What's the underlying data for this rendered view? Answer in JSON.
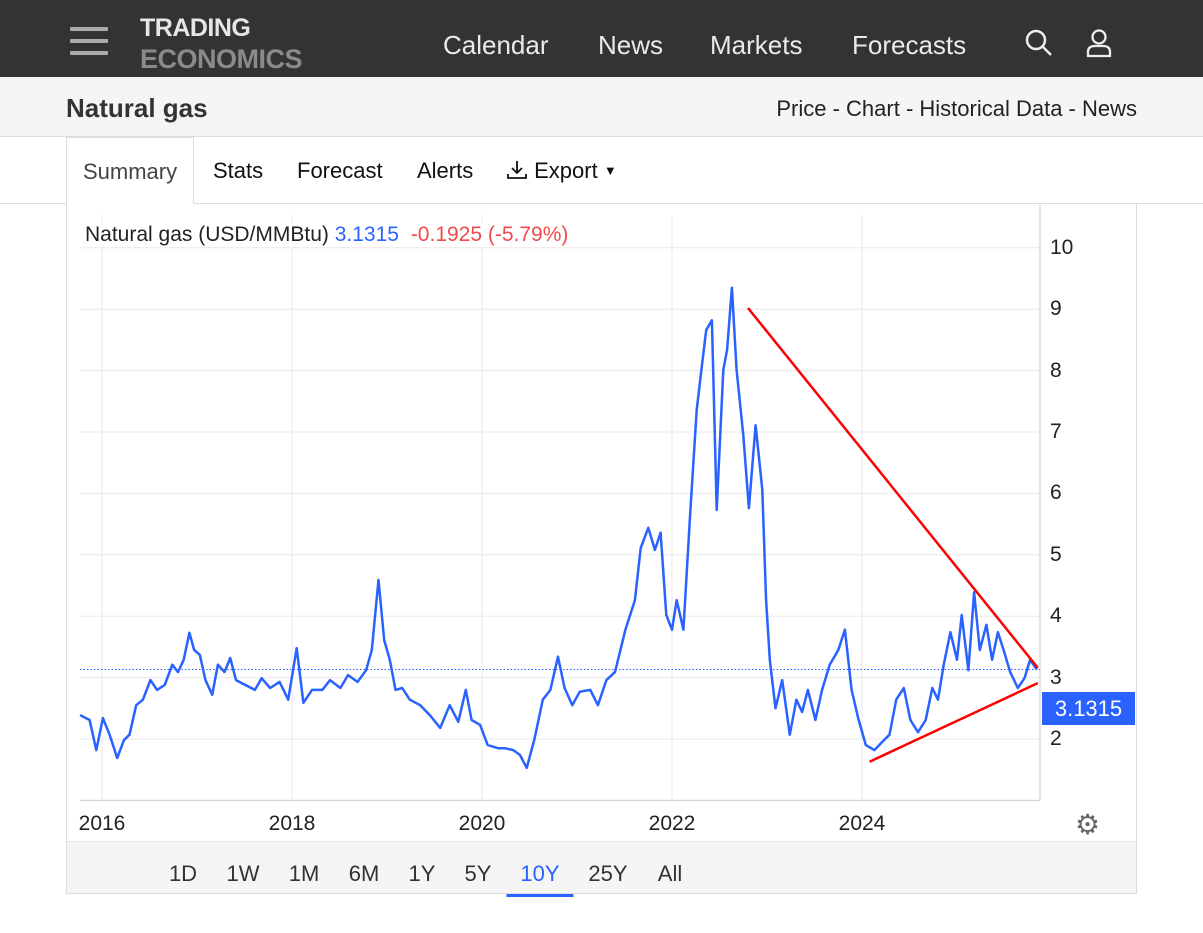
{
  "header": {
    "logo_line1": "TRADING",
    "logo_line2": "ECONOMICS",
    "nav": [
      "Calendar",
      "News",
      "Markets",
      "Forecasts"
    ]
  },
  "subheader": {
    "title": "Natural gas",
    "links": "Price - Chart - Historical Data - News"
  },
  "tabs": [
    "Summary",
    "Stats",
    "Forecast",
    "Alerts",
    "Export"
  ],
  "legend": {
    "name": "Natural gas (USD/MMBtu)",
    "price": "3.1315",
    "change": "-0.1925 (-5.79%)"
  },
  "price_label": "3.1315",
  "ranges": [
    "1D",
    "1W",
    "1M",
    "6M",
    "1Y",
    "5Y",
    "10Y",
    "25Y",
    "All"
  ],
  "active_range": "10Y",
  "colors": {
    "series": "#2962ff",
    "change": "#f04a4a",
    "trendline": "#ff0000",
    "header": "#333333"
  },
  "chart_data": {
    "type": "line",
    "xlabel": "",
    "ylabel": "",
    "x_ticks": [
      "2016",
      "2018",
      "2020",
      "2022",
      "2024"
    ],
    "y_ticks": [
      "2",
      "3",
      "4",
      "5",
      "6",
      "7",
      "8",
      "9",
      "10"
    ],
    "ylim": [
      1,
      10.5
    ],
    "grid": true,
    "current_value_line": 3.1315,
    "series": [
      {
        "points": [
          [
            2015.77,
            2.39
          ],
          [
            2015.87,
            2.31
          ],
          [
            2015.94,
            1.82
          ],
          [
            2016.01,
            2.34
          ],
          [
            2016.08,
            2.07
          ],
          [
            2016.16,
            1.69
          ],
          [
            2016.23,
            1.98
          ],
          [
            2016.29,
            2.07
          ],
          [
            2016.36,
            2.55
          ],
          [
            2016.43,
            2.64
          ],
          [
            2016.51,
            2.96
          ],
          [
            2016.58,
            2.8
          ],
          [
            2016.66,
            2.88
          ],
          [
            2016.74,
            3.21
          ],
          [
            2016.8,
            3.09
          ],
          [
            2016.86,
            3.29
          ],
          [
            2016.92,
            3.73
          ],
          [
            2016.97,
            3.45
          ],
          [
            2017.03,
            3.37
          ],
          [
            2017.09,
            2.96
          ],
          [
            2017.16,
            2.72
          ],
          [
            2017.22,
            3.21
          ],
          [
            2017.29,
            3.09
          ],
          [
            2017.35,
            3.32
          ],
          [
            2017.41,
            2.96
          ],
          [
            2017.51,
            2.88
          ],
          [
            2017.61,
            2.8
          ],
          [
            2017.68,
            2.99
          ],
          [
            2017.77,
            2.83
          ],
          [
            2017.87,
            2.93
          ],
          [
            2017.96,
            2.64
          ],
          [
            2018.05,
            3.48
          ],
          [
            2018.12,
            2.59
          ],
          [
            2018.21,
            2.8
          ],
          [
            2018.32,
            2.8
          ],
          [
            2018.4,
            2.96
          ],
          [
            2018.51,
            2.83
          ],
          [
            2018.59,
            3.04
          ],
          [
            2018.69,
            2.93
          ],
          [
            2018.78,
            3.12
          ],
          [
            2018.84,
            3.45
          ],
          [
            2018.91,
            4.59
          ],
          [
            2018.97,
            3.61
          ],
          [
            2019.03,
            3.29
          ],
          [
            2019.09,
            2.8
          ],
          [
            2019.16,
            2.83
          ],
          [
            2019.24,
            2.64
          ],
          [
            2019.35,
            2.55
          ],
          [
            2019.45,
            2.39
          ],
          [
            2019.56,
            2.18
          ],
          [
            2019.66,
            2.55
          ],
          [
            2019.75,
            2.28
          ],
          [
            2019.83,
            2.8
          ],
          [
            2019.89,
            2.31
          ],
          [
            2019.98,
            2.23
          ],
          [
            2020.06,
            1.9
          ],
          [
            2020.17,
            1.85
          ],
          [
            2020.24,
            1.85
          ],
          [
            2020.33,
            1.82
          ],
          [
            2020.4,
            1.74
          ],
          [
            2020.47,
            1.53
          ],
          [
            2020.55,
            1.98
          ],
          [
            2020.64,
            2.64
          ],
          [
            2020.72,
            2.8
          ],
          [
            2020.8,
            3.34
          ],
          [
            2020.87,
            2.83
          ],
          [
            2020.95,
            2.55
          ],
          [
            2021.03,
            2.77
          ],
          [
            2021.14,
            2.8
          ],
          [
            2021.22,
            2.55
          ],
          [
            2021.31,
            2.96
          ],
          [
            2021.4,
            3.09
          ],
          [
            2021.51,
            3.78
          ],
          [
            2021.61,
            4.26
          ],
          [
            2021.67,
            5.11
          ],
          [
            2021.75,
            5.44
          ],
          [
            2021.82,
            5.08
          ],
          [
            2021.88,
            5.36
          ],
          [
            2021.94,
            4.02
          ],
          [
            2022.0,
            3.78
          ],
          [
            2022.05,
            4.26
          ],
          [
            2022.12,
            3.78
          ],
          [
            2022.19,
            5.65
          ],
          [
            2022.26,
            7.36
          ],
          [
            2022.31,
            8.01
          ],
          [
            2022.36,
            8.66
          ],
          [
            2022.42,
            8.82
          ],
          [
            2022.47,
            5.73
          ],
          [
            2022.54,
            8.01
          ],
          [
            2022.58,
            8.34
          ],
          [
            2022.63,
            9.35
          ],
          [
            2022.68,
            8.01
          ],
          [
            2022.75,
            6.95
          ],
          [
            2022.81,
            5.76
          ],
          [
            2022.88,
            7.11
          ],
          [
            2022.95,
            6.06
          ],
          [
            2022.99,
            4.26
          ],
          [
            2023.03,
            3.29
          ],
          [
            2023.09,
            2.5
          ],
          [
            2023.16,
            2.96
          ],
          [
            2023.24,
            2.07
          ],
          [
            2023.31,
            2.64
          ],
          [
            2023.37,
            2.44
          ],
          [
            2023.43,
            2.8
          ],
          [
            2023.51,
            2.31
          ],
          [
            2023.58,
            2.8
          ],
          [
            2023.66,
            3.21
          ],
          [
            2023.75,
            3.45
          ],
          [
            2023.82,
            3.78
          ],
          [
            2023.89,
            2.8
          ],
          [
            2023.96,
            2.34
          ],
          [
            2024.04,
            1.9
          ],
          [
            2024.13,
            1.82
          ],
          [
            2024.21,
            1.95
          ],
          [
            2024.29,
            2.07
          ],
          [
            2024.36,
            2.64
          ],
          [
            2024.44,
            2.83
          ],
          [
            2024.51,
            2.31
          ],
          [
            2024.59,
            2.11
          ],
          [
            2024.67,
            2.31
          ],
          [
            2024.74,
            2.83
          ],
          [
            2024.8,
            2.64
          ],
          [
            2024.86,
            3.21
          ],
          [
            2024.93,
            3.74
          ],
          [
            2025.0,
            3.29
          ],
          [
            2025.05,
            4.02
          ],
          [
            2025.12,
            3.12
          ],
          [
            2025.18,
            4.39
          ],
          [
            2025.24,
            3.45
          ],
          [
            2025.31,
            3.86
          ],
          [
            2025.37,
            3.29
          ],
          [
            2025.43,
            3.74
          ],
          [
            2025.49,
            3.45
          ],
          [
            2025.56,
            3.09
          ],
          [
            2025.64,
            2.83
          ],
          [
            2025.71,
            2.99
          ],
          [
            2025.77,
            3.29
          ],
          [
            2025.84,
            3.13
          ]
        ]
      }
    ],
    "annotations": [
      {
        "type": "trendline",
        "from": [
          2022.8,
          9.02
        ],
        "to": [
          2025.85,
          3.16
        ]
      },
      {
        "type": "trendline",
        "from": [
          2024.08,
          1.63
        ],
        "to": [
          2025.85,
          2.91
        ]
      }
    ]
  }
}
